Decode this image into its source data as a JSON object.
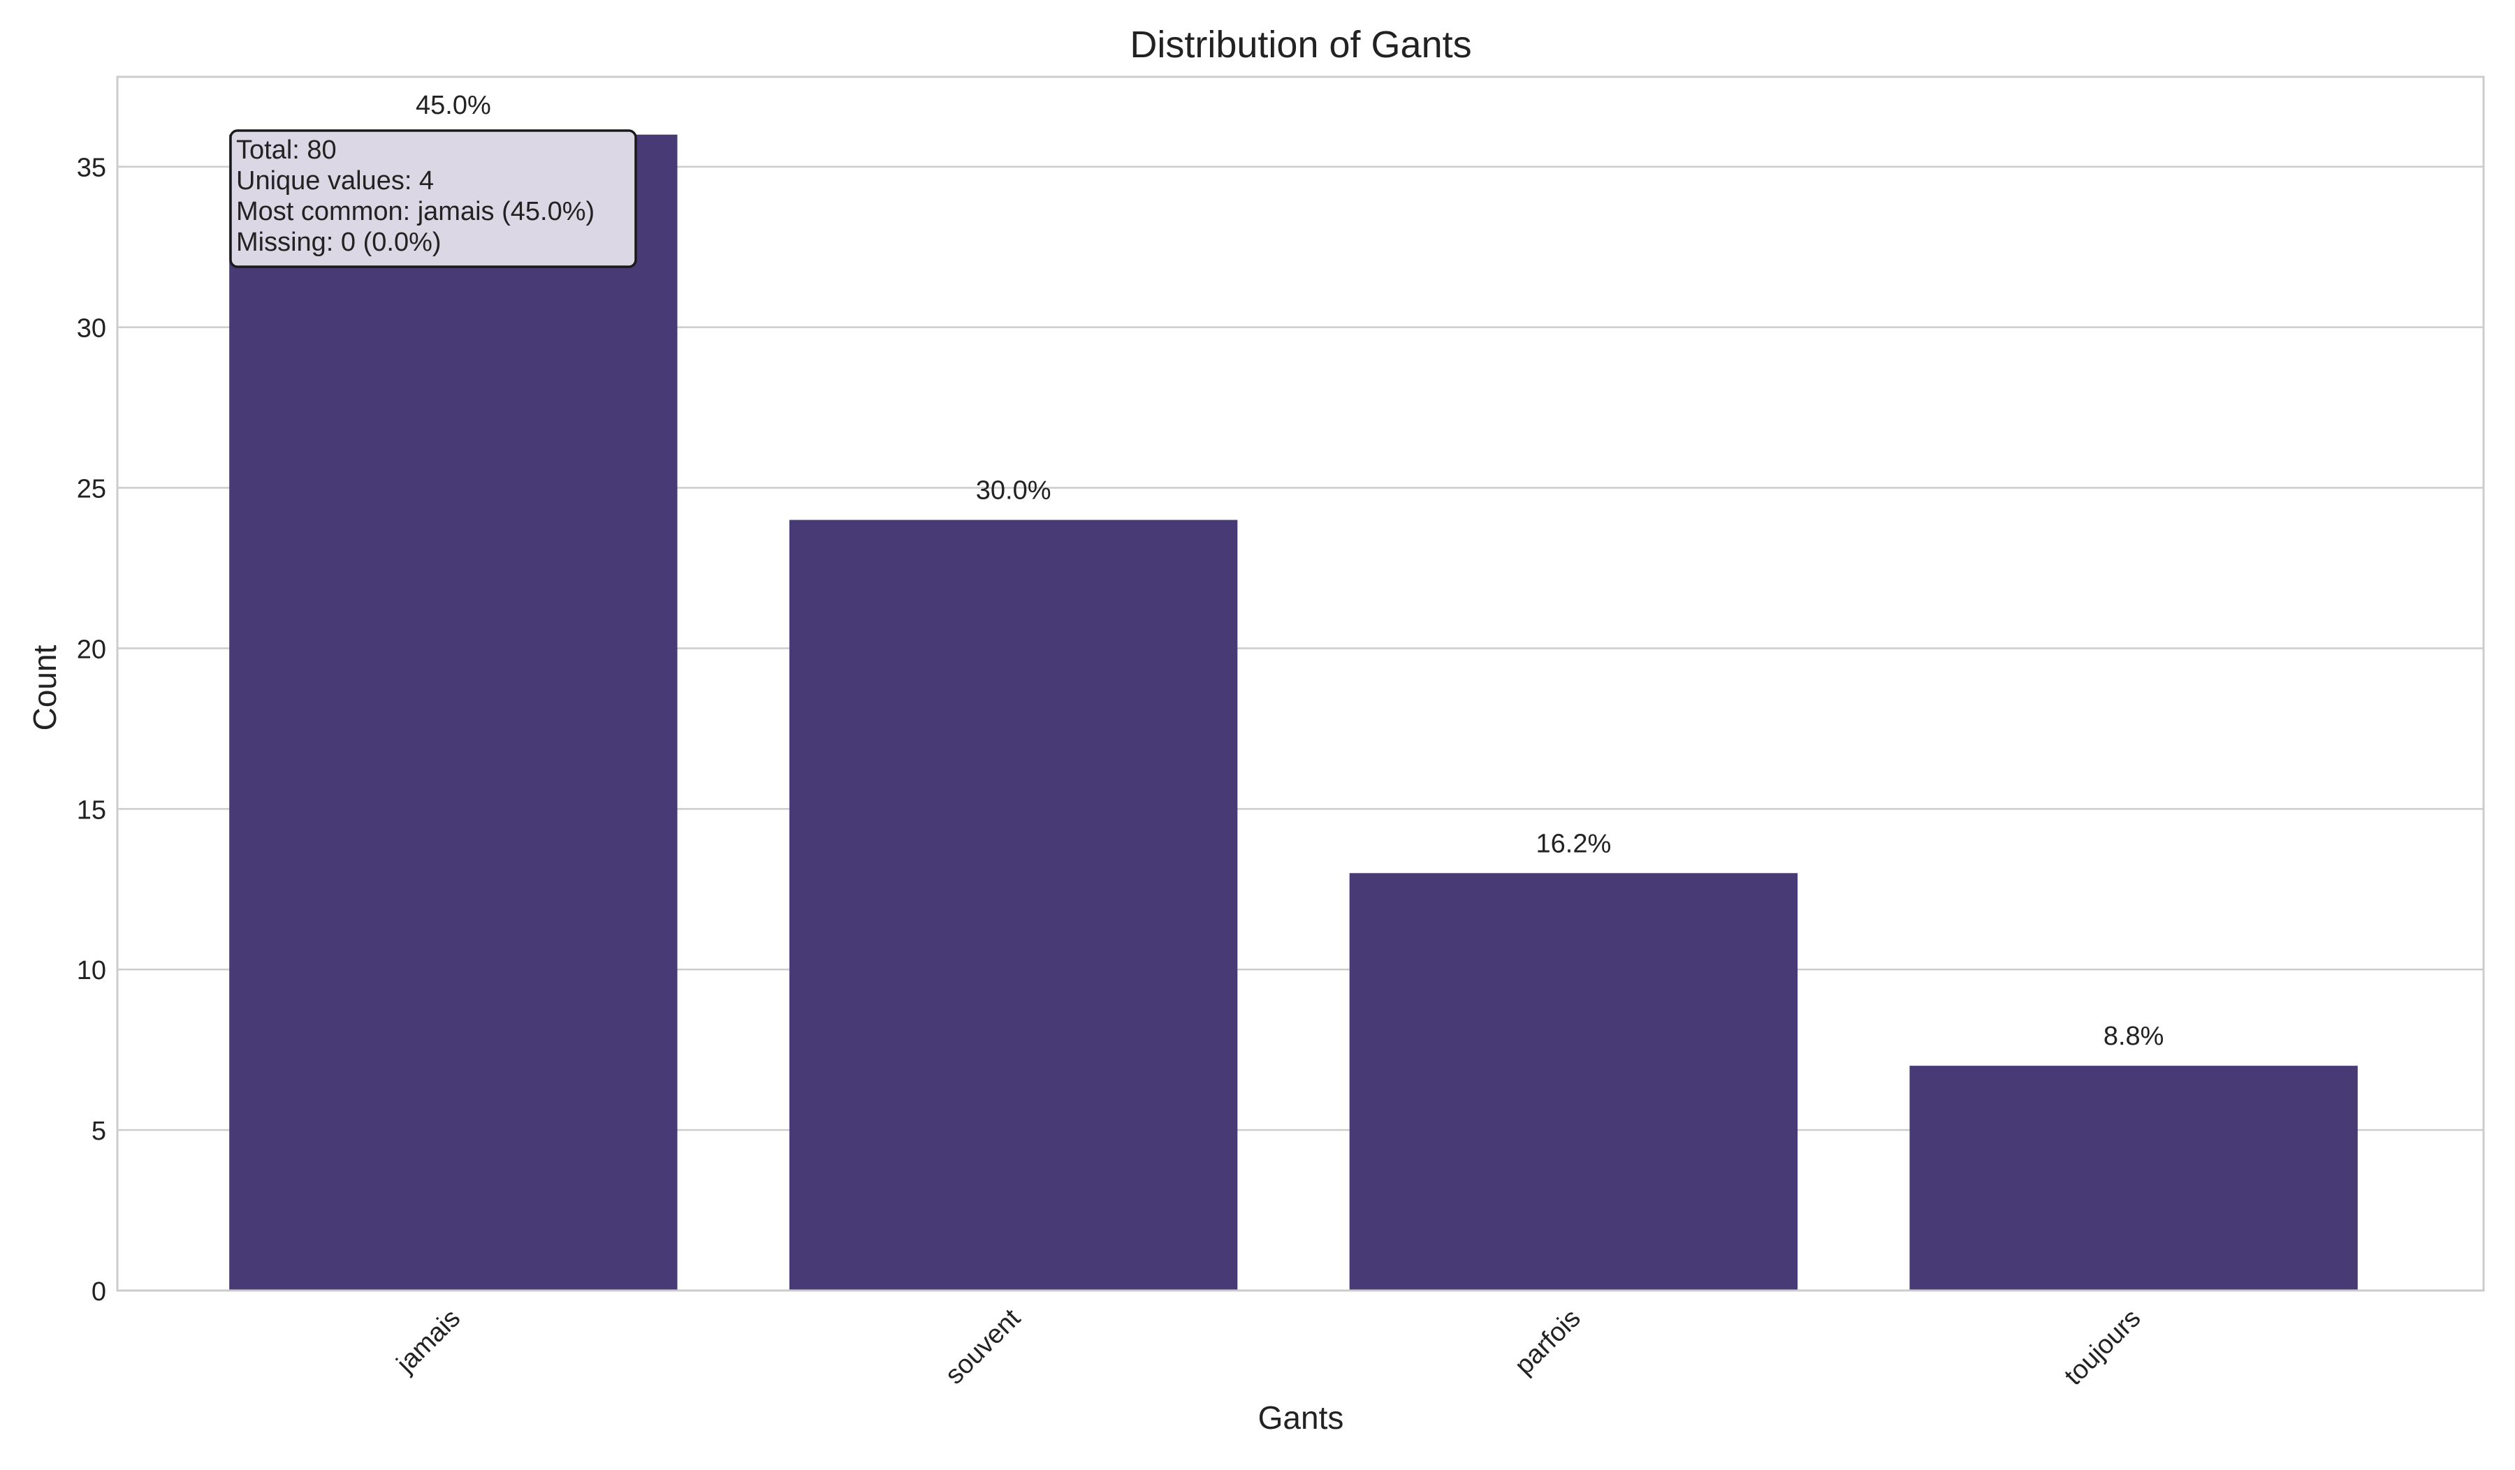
{
  "chart_data": {
    "type": "bar",
    "title": "Distribution of Gants",
    "xlabel": "Gants",
    "ylabel": "Count",
    "categories": [
      "jamais",
      "souvent",
      "parfois",
      "toujours"
    ],
    "values": [
      36,
      24,
      13,
      7
    ],
    "bar_labels": [
      "45.0%",
      "30.0%",
      "16.2%",
      "8.8%"
    ],
    "ylim": [
      0,
      37.8
    ],
    "yticks": [
      0,
      5,
      10,
      15,
      20,
      25,
      30,
      35
    ],
    "grid": "y",
    "bar_color": "#483a74",
    "annotation": {
      "lines": [
        "Total: 80",
        "Unique values: 4",
        "Most common: jamais (45.0%)",
        "Missing: 0 (0.0%)"
      ]
    }
  }
}
